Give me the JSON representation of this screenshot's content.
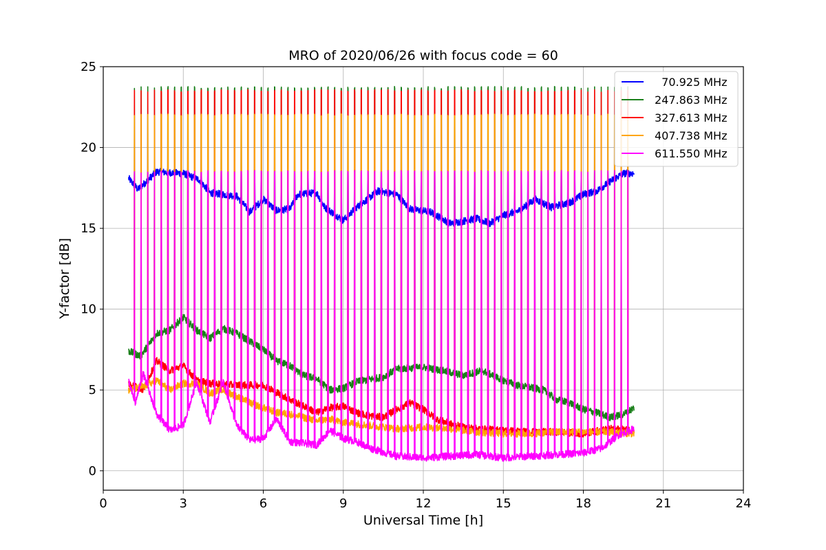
{
  "chart_data": {
    "type": "line",
    "title": "MRO of 2020/06/26 with focus code = 60",
    "xlabel": "Universal Time [h]",
    "ylabel": "Y-factor [dB]",
    "xlim": [
      0,
      24
    ],
    "ylim": [
      -1.2,
      25
    ],
    "xticks": [
      0,
      3,
      6,
      9,
      12,
      15,
      18,
      21,
      24
    ],
    "yticks": [
      0,
      5,
      10,
      15,
      20,
      25
    ],
    "grid": true,
    "legend_position": "top-right",
    "cycle_period_h": 0.25,
    "x_range_data": [
      0.95,
      19.9
    ],
    "series": [
      {
        "name": "  70.925 MHz",
        "color": "#0000ff",
        "peak": 18.5,
        "baseline": [
          [
            0.95,
            18.1
          ],
          [
            1.3,
            17.4
          ],
          [
            2.0,
            18.5
          ],
          [
            3.0,
            18.4
          ],
          [
            3.6,
            18.0
          ],
          [
            4.0,
            17.2
          ],
          [
            5.0,
            17.0
          ],
          [
            5.5,
            16.0
          ],
          [
            6.0,
            16.8
          ],
          [
            6.5,
            16.1
          ],
          [
            7.0,
            16.2
          ],
          [
            7.3,
            17.1
          ],
          [
            8.0,
            17.2
          ],
          [
            8.3,
            16.3
          ],
          [
            9.0,
            15.5
          ],
          [
            9.5,
            16.3
          ],
          [
            10.3,
            17.3
          ],
          [
            11.0,
            17.1
          ],
          [
            11.5,
            16.2
          ],
          [
            12.3,
            16.0
          ],
          [
            13.0,
            15.3
          ],
          [
            14.0,
            15.6
          ],
          [
            14.5,
            15.3
          ],
          [
            15.0,
            15.8
          ],
          [
            15.6,
            16.1
          ],
          [
            16.2,
            16.8
          ],
          [
            16.8,
            16.3
          ],
          [
            17.5,
            16.6
          ],
          [
            18.0,
            17.1
          ],
          [
            18.5,
            17.3
          ],
          [
            19.0,
            17.9
          ],
          [
            19.5,
            18.4
          ],
          [
            19.9,
            18.4
          ]
        ]
      },
      {
        "name": "247.863 MHz",
        "color": "#1a7f1a",
        "peak": 23.7,
        "baseline": [
          [
            0.95,
            7.4
          ],
          [
            1.4,
            7.1
          ],
          [
            2.0,
            8.5
          ],
          [
            2.5,
            8.7
          ],
          [
            3.0,
            9.5
          ],
          [
            3.5,
            8.7
          ],
          [
            4.0,
            8.2
          ],
          [
            4.5,
            8.8
          ],
          [
            5.0,
            8.5
          ],
          [
            6.0,
            7.5
          ],
          [
            6.5,
            6.8
          ],
          [
            7.0,
            6.5
          ],
          [
            7.5,
            5.9
          ],
          [
            8.0,
            5.7
          ],
          [
            8.5,
            5.0
          ],
          [
            9.0,
            5.1
          ],
          [
            9.5,
            5.5
          ],
          [
            10.5,
            5.8
          ],
          [
            11.0,
            6.3
          ],
          [
            12.0,
            6.4
          ],
          [
            12.7,
            6.2
          ],
          [
            13.5,
            5.9
          ],
          [
            14.2,
            6.2
          ],
          [
            15.0,
            5.6
          ],
          [
            15.5,
            5.3
          ],
          [
            16.5,
            5.0
          ],
          [
            17.0,
            4.4
          ],
          [
            17.5,
            4.2
          ],
          [
            18.0,
            3.8
          ],
          [
            18.5,
            3.6
          ],
          [
            19.0,
            3.3
          ],
          [
            19.5,
            3.5
          ],
          [
            19.9,
            3.9
          ]
        ]
      },
      {
        "name": "327.613 MHz",
        "color": "#ff0000",
        "peak": 23.5,
        "baseline": [
          [
            0.95,
            5.4
          ],
          [
            1.5,
            5.0
          ],
          [
            2.0,
            6.8
          ],
          [
            2.5,
            6.2
          ],
          [
            3.0,
            6.5
          ],
          [
            3.5,
            5.6
          ],
          [
            4.0,
            5.4
          ],
          [
            5.0,
            5.3
          ],
          [
            6.0,
            5.3
          ],
          [
            7.0,
            4.4
          ],
          [
            7.5,
            4.0
          ],
          [
            8.0,
            3.6
          ],
          [
            8.5,
            3.9
          ],
          [
            9.0,
            4.0
          ],
          [
            9.5,
            3.6
          ],
          [
            10.0,
            3.4
          ],
          [
            10.5,
            3.3
          ],
          [
            11.0,
            3.8
          ],
          [
            11.5,
            4.2
          ],
          [
            12.0,
            3.8
          ],
          [
            12.5,
            3.2
          ],
          [
            13.0,
            2.9
          ],
          [
            13.5,
            2.7
          ],
          [
            14.0,
            2.6
          ],
          [
            15.0,
            2.5
          ],
          [
            16.0,
            2.4
          ],
          [
            17.0,
            2.4
          ],
          [
            18.0,
            2.3
          ],
          [
            19.0,
            2.6
          ],
          [
            19.9,
            2.5
          ]
        ]
      },
      {
        "name": "407.738 MHz",
        "color": "#ffa500",
        "peak": 22.0,
        "baseline": [
          [
            0.95,
            5.0
          ],
          [
            1.5,
            5.2
          ],
          [
            2.0,
            5.6
          ],
          [
            2.5,
            5.0
          ],
          [
            3.0,
            5.4
          ],
          [
            3.5,
            5.4
          ],
          [
            4.0,
            4.8
          ],
          [
            4.5,
            5.0
          ],
          [
            5.0,
            4.6
          ],
          [
            5.5,
            4.2
          ],
          [
            6.0,
            3.9
          ],
          [
            6.5,
            3.6
          ],
          [
            7.0,
            3.5
          ],
          [
            7.5,
            3.3
          ],
          [
            8.0,
            3.1
          ],
          [
            8.5,
            3.2
          ],
          [
            9.0,
            3.0
          ],
          [
            9.5,
            2.9
          ],
          [
            10.0,
            2.8
          ],
          [
            10.5,
            2.7
          ],
          [
            11.0,
            2.6
          ],
          [
            12.0,
            2.7
          ],
          [
            13.0,
            2.6
          ],
          [
            14.0,
            2.4
          ],
          [
            15.0,
            2.3
          ],
          [
            16.0,
            2.3
          ],
          [
            17.0,
            2.4
          ],
          [
            18.0,
            2.4
          ],
          [
            19.0,
            2.4
          ],
          [
            19.9,
            2.3
          ]
        ]
      },
      {
        "name": "611.550 MHz",
        "color": "#ff00ff",
        "peak": 18.5,
        "baseline": [
          [
            0.95,
            5.5
          ],
          [
            1.2,
            4.2
          ],
          [
            1.5,
            6.0
          ],
          [
            2.0,
            3.5
          ],
          [
            2.5,
            2.5
          ],
          [
            3.0,
            2.8
          ],
          [
            3.5,
            5.5
          ],
          [
            4.0,
            3.0
          ],
          [
            4.5,
            5.5
          ],
          [
            5.0,
            2.8
          ],
          [
            5.5,
            1.9
          ],
          [
            6.0,
            2.0
          ],
          [
            6.5,
            3.2
          ],
          [
            7.0,
            1.8
          ],
          [
            7.5,
            1.7
          ],
          [
            8.0,
            1.6
          ],
          [
            8.5,
            2.5
          ],
          [
            9.0,
            2.0
          ],
          [
            9.5,
            1.8
          ],
          [
            10.0,
            1.4
          ],
          [
            11.0,
            0.9
          ],
          [
            12.0,
            0.8
          ],
          [
            13.0,
            0.9
          ],
          [
            14.0,
            1.0
          ],
          [
            15.0,
            0.8
          ],
          [
            16.0,
            0.9
          ],
          [
            17.0,
            1.0
          ],
          [
            18.0,
            1.1
          ],
          [
            18.7,
            1.4
          ],
          [
            19.3,
            2.2
          ],
          [
            19.9,
            2.6
          ]
        ]
      }
    ]
  }
}
